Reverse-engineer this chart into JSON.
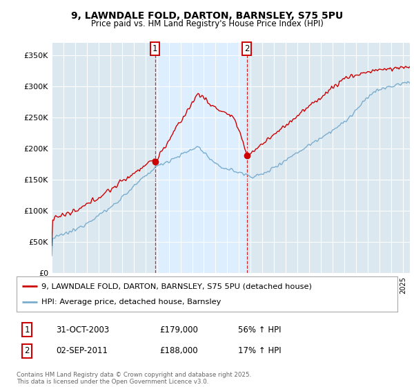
{
  "title1": "9, LAWNDALE FOLD, DARTON, BARNSLEY, S75 5PU",
  "title2": "Price paid vs. HM Land Registry's House Price Index (HPI)",
  "legend1": "9, LAWNDALE FOLD, DARTON, BARNSLEY, S75 5PU (detached house)",
  "legend2": "HPI: Average price, detached house, Barnsley",
  "sale1_date": "31-OCT-2003",
  "sale1_year": 2003.83,
  "sale1_price": 179000,
  "sale2_date": "02-SEP-2011",
  "sale2_year": 2011.67,
  "sale2_price": 188000,
  "sale1_pct": "56% ↑ HPI",
  "sale2_pct": "17% ↑ HPI",
  "footer": "Contains HM Land Registry data © Crown copyright and database right 2025.\nThis data is licensed under the Open Government Licence v3.0.",
  "red_color": "#cc0000",
  "blue_color": "#7aadce",
  "shade_color": "#ddeeff",
  "bg_color": "#dce8f0",
  "ylim": [
    0,
    370000
  ],
  "xlim_start": 1995.0,
  "xlim_end": 2025.6
}
